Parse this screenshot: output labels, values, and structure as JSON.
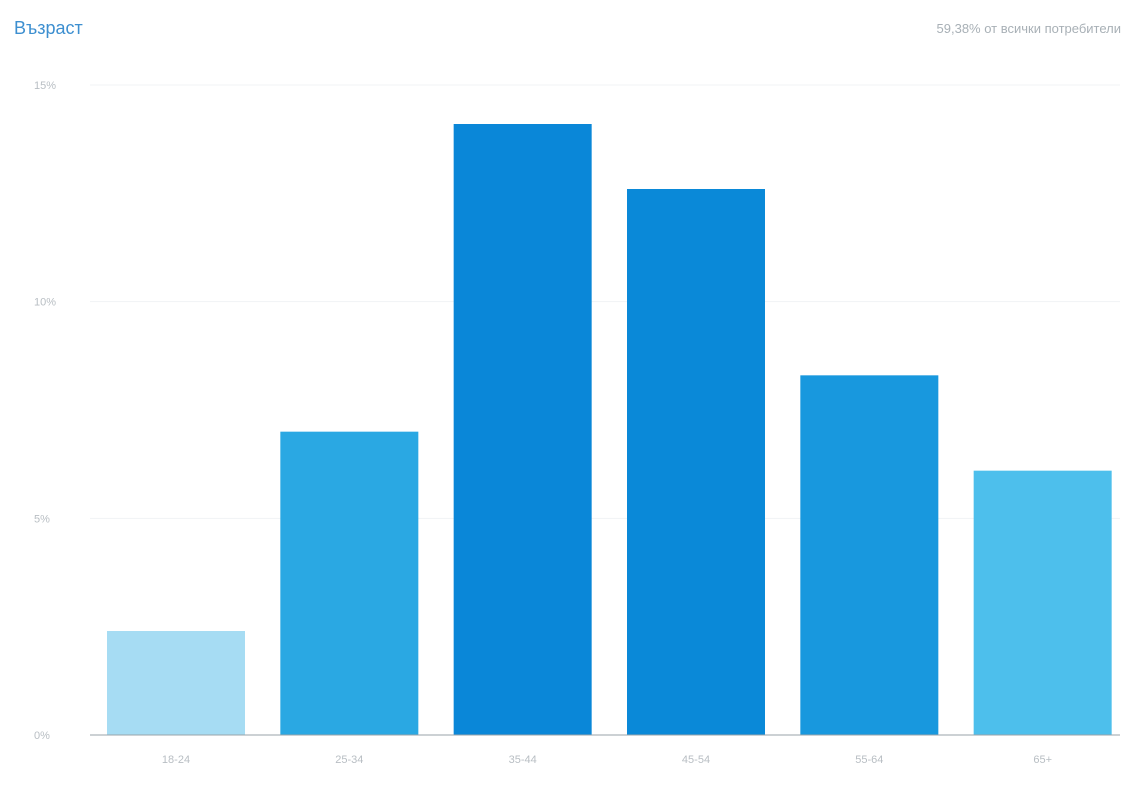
{
  "chart_data": {
    "type": "bar",
    "title": "Възраст",
    "subtitle": "59,38% от всички потребители",
    "categories": [
      "18-24",
      "25-34",
      "35-44",
      "45-54",
      "55-64",
      "65+"
    ],
    "values": [
      2.4,
      7.0,
      14.1,
      12.6,
      8.3,
      6.1
    ],
    "yticks": [
      "0%",
      "5%",
      "10%",
      "15%"
    ],
    "ylim": [
      0,
      15
    ],
    "grid": true,
    "legend": "none",
    "colors": [
      "#a6dcf3",
      "#2aa8e3",
      "#0a87d8",
      "#0a89d8",
      "#1898de",
      "#4dbfec"
    ]
  }
}
